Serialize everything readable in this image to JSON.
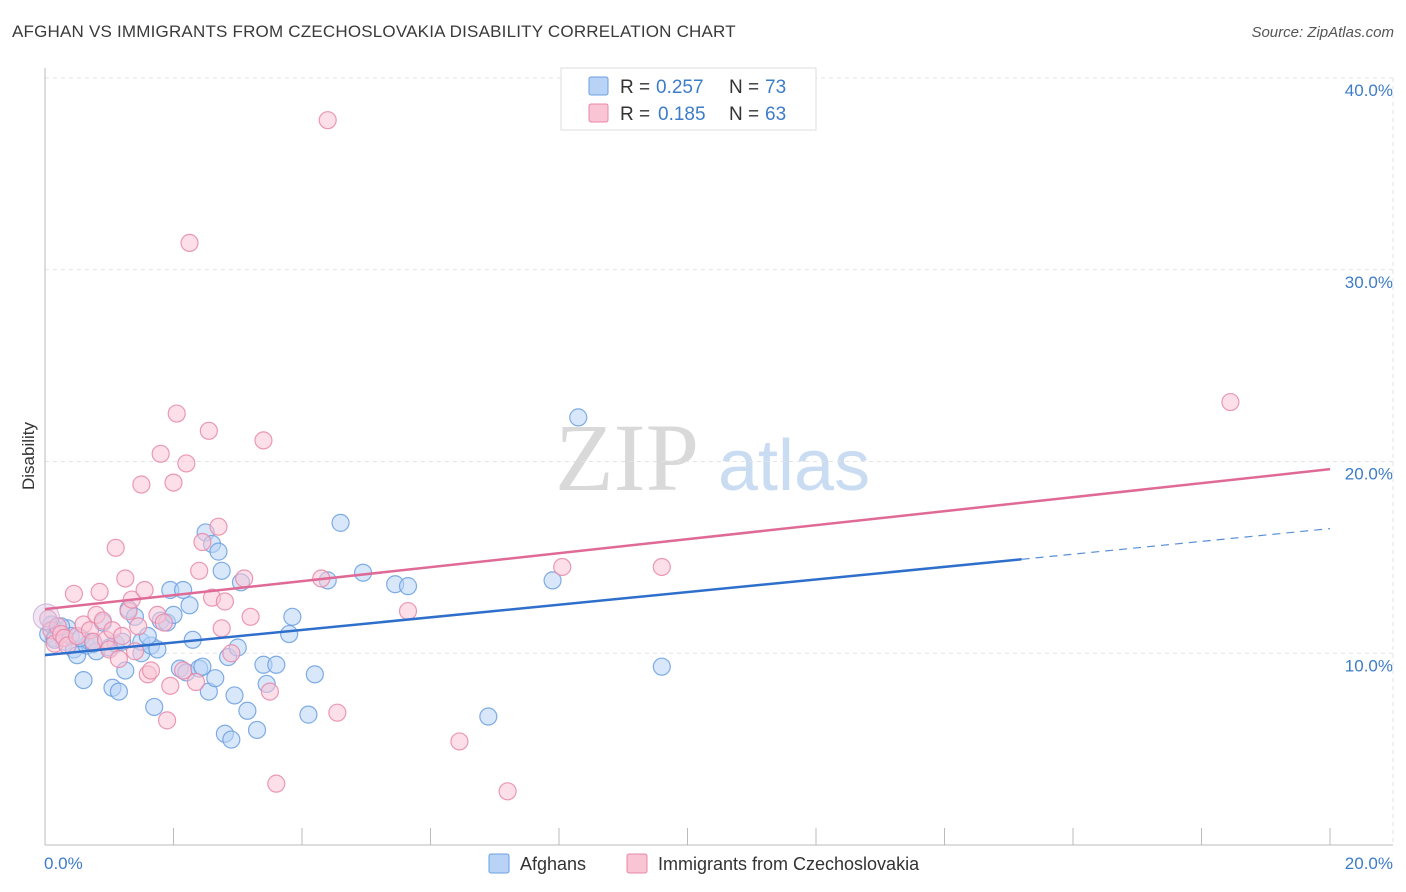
{
  "header": {
    "title": "AFGHAN VS IMMIGRANTS FROM CZECHOSLOVAKIA DISABILITY CORRELATION CHART",
    "source": "Source: ZipAtlas.com"
  },
  "watermark": {
    "zip": "ZIP",
    "atlas": "atlas"
  },
  "legend": {
    "rows": [
      {
        "r_label": "R =",
        "r_value": "0.257",
        "n_label": "N =",
        "n_value": "73",
        "fill": "#b8d3f5",
        "stroke": "#6a9fe0"
      },
      {
        "r_label": "R =",
        "r_value": "0.185",
        "n_label": "N =",
        "n_value": "63",
        "fill": "#f9c5d5",
        "stroke": "#e888a8"
      }
    ]
  },
  "bottom_legend": {
    "items": [
      {
        "label": "Afghans",
        "fill": "#b8d3f5",
        "stroke": "#6a9fe0"
      },
      {
        "label": "Immigrants from Czechoslovakia",
        "fill": "#f9c5d5",
        "stroke": "#e888a8"
      }
    ]
  },
  "chart_data": {
    "type": "scatter",
    "title": "AFGHAN VS IMMIGRANTS FROM CZECHOSLOVAKIA DISABILITY CORRELATION CHART",
    "xlabel": "",
    "ylabel": "Disability",
    "xlim": [
      0,
      20
    ],
    "ylim": [
      0,
      40
    ],
    "x_tick_labels": [
      "0.0%",
      "20.0%"
    ],
    "y_ticks": [
      10,
      20,
      30,
      40
    ],
    "y_tick_labels": [
      "10.0%",
      "20.0%",
      "30.0%",
      "40.0%"
    ],
    "grid": true,
    "series": [
      {
        "name": "Afghans",
        "color": "#3d7cc9",
        "fill": "#b8d3f5",
        "trend": {
          "x0": 0,
          "y0": 9.9,
          "x1": 15.2,
          "y1": 14.9,
          "dash_to_x": 20,
          "dash_to_y": 16.5
        },
        "points": [
          [
            0.05,
            11.0
          ],
          [
            0.1,
            11.5
          ],
          [
            0.15,
            10.8
          ],
          [
            0.2,
            11.2
          ],
          [
            0.3,
            10.6
          ],
          [
            0.35,
            11.3
          ],
          [
            0.4,
            10.9
          ],
          [
            0.45,
            10.2
          ],
          [
            0.5,
            9.9
          ],
          [
            0.6,
            8.6
          ],
          [
            0.65,
            10.4
          ],
          [
            0.7,
            10.6
          ],
          [
            0.8,
            10.1
          ],
          [
            0.9,
            11.6
          ],
          [
            1.0,
            10.3
          ],
          [
            1.05,
            8.2
          ],
          [
            1.1,
            10.5
          ],
          [
            1.15,
            8.0
          ],
          [
            1.25,
            9.1
          ],
          [
            1.3,
            12.3
          ],
          [
            1.4,
            11.9
          ],
          [
            1.5,
            10.0
          ],
          [
            1.5,
            10.6
          ],
          [
            1.65,
            10.4
          ],
          [
            1.7,
            7.2
          ],
          [
            1.75,
            10.2
          ],
          [
            1.8,
            11.7
          ],
          [
            1.9,
            11.6
          ],
          [
            1.95,
            13.3
          ],
          [
            2.0,
            12.0
          ],
          [
            2.1,
            9.2
          ],
          [
            2.15,
            13.3
          ],
          [
            2.2,
            9.0
          ],
          [
            2.25,
            12.5
          ],
          [
            2.3,
            10.7
          ],
          [
            2.4,
            9.2
          ],
          [
            2.45,
            9.3
          ],
          [
            2.5,
            16.3
          ],
          [
            2.55,
            8.0
          ],
          [
            2.6,
            15.7
          ],
          [
            2.65,
            8.7
          ],
          [
            2.7,
            15.3
          ],
          [
            2.75,
            14.3
          ],
          [
            2.8,
            5.8
          ],
          [
            2.85,
            9.8
          ],
          [
            2.9,
            5.5
          ],
          [
            2.95,
            7.8
          ],
          [
            3.0,
            10.3
          ],
          [
            3.05,
            13.7
          ],
          [
            3.15,
            7.0
          ],
          [
            3.3,
            6.0
          ],
          [
            3.4,
            9.4
          ],
          [
            3.45,
            8.4
          ],
          [
            3.6,
            9.4
          ],
          [
            3.8,
            11.0
          ],
          [
            3.85,
            11.9
          ],
          [
            4.1,
            6.8
          ],
          [
            4.2,
            8.9
          ],
          [
            4.4,
            13.8
          ],
          [
            4.6,
            16.8
          ],
          [
            4.95,
            14.2
          ],
          [
            5.45,
            13.6
          ],
          [
            5.65,
            13.5
          ],
          [
            6.9,
            6.7
          ],
          [
            7.9,
            13.8
          ],
          [
            8.3,
            22.3
          ],
          [
            9.6,
            9.3
          ],
          [
            0.25,
            11.4
          ],
          [
            0.55,
            10.8
          ],
          [
            0.75,
            10.5
          ],
          [
            1.2,
            10.6
          ],
          [
            1.6,
            10.9
          ],
          [
            0.15,
            10.7
          ]
        ]
      },
      {
        "name": "Immigrants from Czechoslovakia",
        "color": "#e06a96",
        "fill": "#f9c5d5",
        "trend": {
          "x0": 0,
          "y0": 12.3,
          "x1": 20,
          "y1": 19.6
        },
        "points": [
          [
            0.05,
            11.8
          ],
          [
            0.1,
            11.2
          ],
          [
            0.15,
            10.5
          ],
          [
            0.2,
            11.4
          ],
          [
            0.25,
            11.0
          ],
          [
            0.3,
            10.8
          ],
          [
            0.35,
            10.4
          ],
          [
            0.45,
            13.1
          ],
          [
            0.5,
            10.9
          ],
          [
            0.6,
            11.5
          ],
          [
            0.7,
            11.2
          ],
          [
            0.75,
            10.6
          ],
          [
            0.8,
            12.0
          ],
          [
            0.85,
            13.2
          ],
          [
            0.9,
            11.7
          ],
          [
            0.95,
            10.7
          ],
          [
            1.0,
            10.2
          ],
          [
            1.05,
            11.2
          ],
          [
            1.1,
            15.5
          ],
          [
            1.15,
            9.7
          ],
          [
            1.25,
            13.9
          ],
          [
            1.3,
            12.2
          ],
          [
            1.35,
            12.8
          ],
          [
            1.4,
            10.1
          ],
          [
            1.45,
            11.4
          ],
          [
            1.5,
            18.8
          ],
          [
            1.55,
            13.3
          ],
          [
            1.6,
            8.9
          ],
          [
            1.65,
            9.1
          ],
          [
            1.75,
            12.0
          ],
          [
            1.8,
            20.4
          ],
          [
            1.85,
            11.6
          ],
          [
            1.9,
            6.5
          ],
          [
            1.95,
            8.3
          ],
          [
            2.0,
            18.9
          ],
          [
            2.05,
            22.5
          ],
          [
            2.15,
            9.1
          ],
          [
            2.2,
            19.9
          ],
          [
            2.25,
            31.4
          ],
          [
            2.35,
            8.5
          ],
          [
            2.4,
            14.3
          ],
          [
            2.45,
            15.8
          ],
          [
            2.55,
            21.6
          ],
          [
            2.6,
            12.9
          ],
          [
            2.7,
            16.6
          ],
          [
            2.75,
            11.3
          ],
          [
            2.8,
            12.7
          ],
          [
            2.9,
            10.0
          ],
          [
            3.1,
            13.9
          ],
          [
            3.2,
            11.9
          ],
          [
            3.4,
            21.1
          ],
          [
            3.5,
            8.0
          ],
          [
            3.6,
            3.2
          ],
          [
            4.3,
            13.9
          ],
          [
            4.4,
            37.8
          ],
          [
            4.55,
            6.9
          ],
          [
            5.65,
            12.2
          ],
          [
            6.45,
            5.4
          ],
          [
            7.2,
            2.8
          ],
          [
            8.05,
            14.5
          ],
          [
            9.6,
            14.5
          ],
          [
            18.45,
            23.1
          ],
          [
            1.2,
            10.9
          ]
        ]
      }
    ]
  }
}
